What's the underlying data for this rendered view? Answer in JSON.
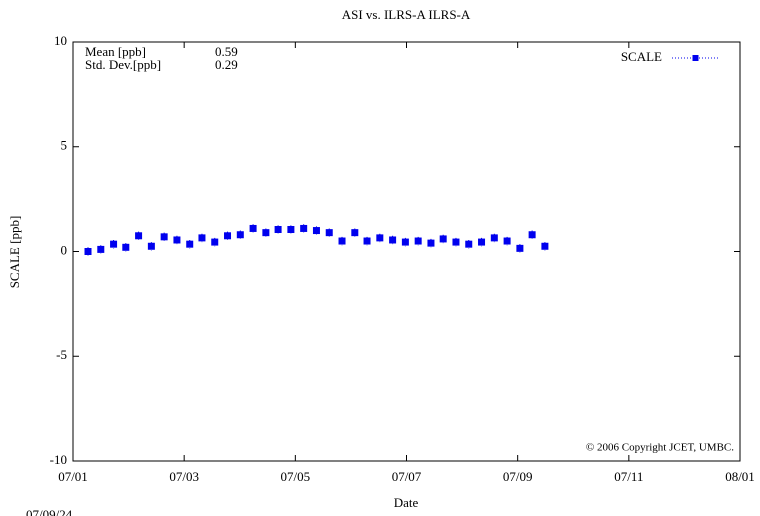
{
  "chart_data": {
    "type": "scatter",
    "title": "ASI  vs. ILRS-A ILRS-A",
    "xlabel": "Date",
    "ylabel": "SCALE [ppb]",
    "xlim": [
      0,
      12
    ],
    "xticks": [
      {
        "value": 0,
        "label": "07/01"
      },
      {
        "value": 2,
        "label": "07/03"
      },
      {
        "value": 4,
        "label": "07/05"
      },
      {
        "value": 6,
        "label": "07/07"
      },
      {
        "value": 8,
        "label": "07/09"
      },
      {
        "value": 10,
        "label": "07/11"
      },
      {
        "value": 12,
        "label": "08/01"
      }
    ],
    "ylim": [
      -10,
      10
    ],
    "yticks": [
      -10,
      -5,
      0,
      5,
      10
    ],
    "stats": [
      {
        "label": "Mean [ppb]",
        "value": "0.59"
      },
      {
        "label": "Std. Dev.[ppb]",
        "value": "0.29"
      }
    ],
    "copyright": "© 2006 Copyright JCET, UMBC.",
    "date_stamp": "07/09/24",
    "legend": "top-right",
    "series": [
      {
        "name": "SCALE",
        "color": "#0000ee",
        "x": [
          0.27,
          0.5,
          0.73,
          0.95,
          1.18,
          1.41,
          1.64,
          1.87,
          2.1,
          2.32,
          2.55,
          2.78,
          3.01,
          3.24,
          3.47,
          3.69,
          3.92,
          4.15,
          4.38,
          4.61,
          4.84,
          5.07,
          5.29,
          5.52,
          5.75,
          5.98,
          6.21,
          6.44,
          6.66,
          6.89,
          7.12,
          7.35,
          7.58,
          7.81,
          8.04,
          8.26,
          8.49
        ],
        "values": [
          0.0,
          0.1,
          0.35,
          0.2,
          0.75,
          0.25,
          0.7,
          0.55,
          0.35,
          0.65,
          0.45,
          0.75,
          0.8,
          1.1,
          0.9,
          1.05,
          1.05,
          1.1,
          1.0,
          0.9,
          0.5,
          0.9,
          0.5,
          0.65,
          0.55,
          0.45,
          0.5,
          0.4,
          0.6,
          0.45,
          0.35,
          0.45,
          0.65,
          0.5,
          0.15,
          0.8,
          0.25
        ],
        "errors": [
          0.2,
          0.2,
          0.2,
          0.2,
          0.2,
          0.2,
          0.2,
          0.2,
          0.2,
          0.2,
          0.2,
          0.2,
          0.2,
          0.2,
          0.2,
          0.2,
          0.2,
          0.2,
          0.2,
          0.2,
          0.2,
          0.2,
          0.2,
          0.2,
          0.2,
          0.2,
          0.2,
          0.2,
          0.2,
          0.2,
          0.2,
          0.2,
          0.2,
          0.2,
          0.2,
          0.2,
          0.2
        ]
      }
    ]
  }
}
